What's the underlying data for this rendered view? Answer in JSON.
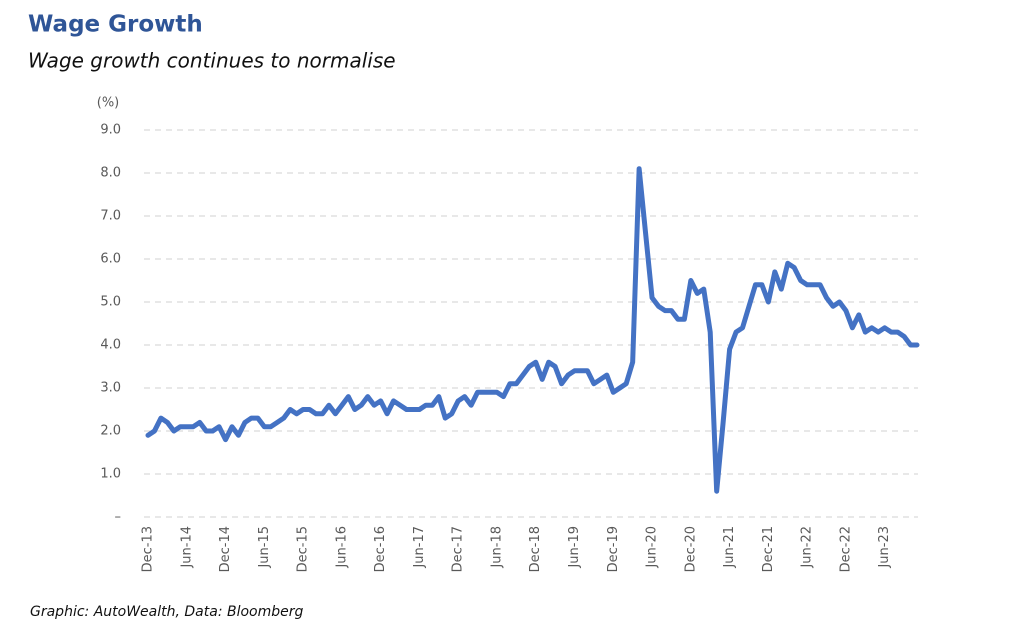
{
  "chart_data": {
    "type": "line",
    "title": "Wage Growth",
    "subtitle": "Wage growth continues to normalise",
    "y_label": "(%)",
    "source": "Graphic: AutoWealth, Data: Bloomberg",
    "color": "#4472c4",
    "grid": true,
    "ylim": [
      0,
      9
    ],
    "yticks": [
      {
        "value": 0,
        "label": "–"
      },
      {
        "value": 1,
        "label": "1.0"
      },
      {
        "value": 2,
        "label": "2.0"
      },
      {
        "value": 3,
        "label": "3.0"
      },
      {
        "value": 4,
        "label": "4.0"
      },
      {
        "value": 5,
        "label": "5.0"
      },
      {
        "value": 6,
        "label": "6.0"
      },
      {
        "value": 7,
        "label": "7.0"
      },
      {
        "value": 8,
        "label": "8.0"
      },
      {
        "value": 9,
        "label": "9.0"
      }
    ],
    "categories": [
      "Dec-13",
      null,
      null,
      null,
      null,
      null,
      "Jun-14",
      null,
      null,
      null,
      null,
      null,
      "Dec-14",
      null,
      null,
      null,
      null,
      null,
      "Jun-15",
      null,
      null,
      null,
      null,
      null,
      "Dec-15",
      null,
      null,
      null,
      null,
      null,
      "Jun-16",
      null,
      null,
      null,
      null,
      null,
      "Dec-16",
      null,
      null,
      null,
      null,
      null,
      "Jun-17",
      null,
      null,
      null,
      null,
      null,
      "Dec-17",
      null,
      null,
      null,
      null,
      null,
      "Jun-18",
      null,
      null,
      null,
      null,
      null,
      "Dec-18",
      null,
      null,
      null,
      null,
      null,
      "Jun-19",
      null,
      null,
      null,
      null,
      null,
      "Dec-19",
      null,
      null,
      null,
      null,
      null,
      "Jun-20",
      null,
      null,
      null,
      null,
      null,
      "Dec-20",
      null,
      null,
      null,
      null,
      null,
      "Jun-21",
      null,
      null,
      null,
      null,
      null,
      "Dec-21",
      null,
      null,
      null,
      null,
      null,
      "Jun-22",
      null,
      null,
      null,
      null,
      null,
      "Dec-22",
      null,
      null,
      null,
      null,
      null,
      "Jun-23",
      null,
      null,
      null,
      null,
      null
    ],
    "values": [
      1.9,
      2.0,
      2.3,
      2.2,
      2.0,
      2.1,
      2.1,
      2.1,
      2.2,
      2.0,
      2.0,
      2.1,
      1.8,
      2.1,
      1.9,
      2.2,
      2.3,
      2.3,
      2.1,
      2.1,
      2.2,
      2.3,
      2.5,
      2.4,
      2.5,
      2.5,
      2.4,
      2.4,
      2.6,
      2.4,
      2.6,
      2.8,
      2.5,
      2.6,
      2.8,
      2.6,
      2.7,
      2.4,
      2.7,
      2.6,
      2.5,
      2.5,
      2.5,
      2.6,
      2.6,
      2.8,
      2.3,
      2.4,
      2.7,
      2.8,
      2.6,
      2.9,
      2.9,
      2.9,
      2.9,
      2.8,
      3.1,
      3.1,
      3.3,
      3.5,
      3.6,
      3.2,
      3.6,
      3.5,
      3.1,
      3.3,
      3.4,
      3.4,
      3.4,
      3.1,
      3.2,
      3.3,
      2.9,
      3.0,
      3.1,
      3.6,
      8.1,
      6.6,
      5.1,
      4.9,
      4.8,
      4.8,
      4.6,
      4.6,
      5.5,
      5.2,
      5.3,
      4.3,
      0.6,
      2.2,
      3.9,
      4.3,
      4.4,
      4.9,
      5.4,
      5.4,
      5.0,
      5.7,
      5.3,
      5.9,
      5.8,
      5.5,
      5.4,
      5.4,
      5.4,
      5.1,
      4.9,
      5.0,
      4.8,
      4.4,
      4.7,
      4.3,
      4.4,
      4.3,
      4.4,
      4.3,
      4.3,
      4.2,
      4.0,
      4.0
    ]
  }
}
